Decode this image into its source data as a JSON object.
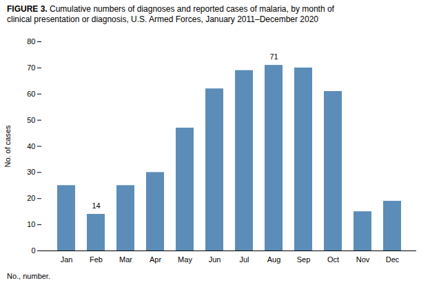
{
  "chart_data": {
    "type": "bar",
    "title": "FIGURE 3. Cumulative numbers of diagnoses and reported cases of malaria, by month of\nclinical presentation or diagnosis, U.S. Armed Forces, January 2011–December 2020",
    "categories": [
      "Jan",
      "Feb",
      "Mar",
      "Apr",
      "May",
      "Jun",
      "Jul",
      "Aug",
      "Sep",
      "Oct",
      "Nov",
      "Dec"
    ],
    "values": [
      25,
      14,
      25,
      30,
      47,
      62,
      69,
      71,
      70,
      61,
      15,
      19
    ],
    "color": "#5b8db8",
    "ylabel": "No. of cases",
    "ylim": [
      0,
      80
    ],
    "yticks": [
      0,
      10,
      20,
      30,
      40,
      50,
      60,
      70,
      80
    ],
    "grid": false,
    "annotations": [
      {
        "category": "Feb",
        "text": "14"
      },
      {
        "category": "Aug",
        "text": "71"
      }
    ],
    "footnote": "No., number."
  }
}
